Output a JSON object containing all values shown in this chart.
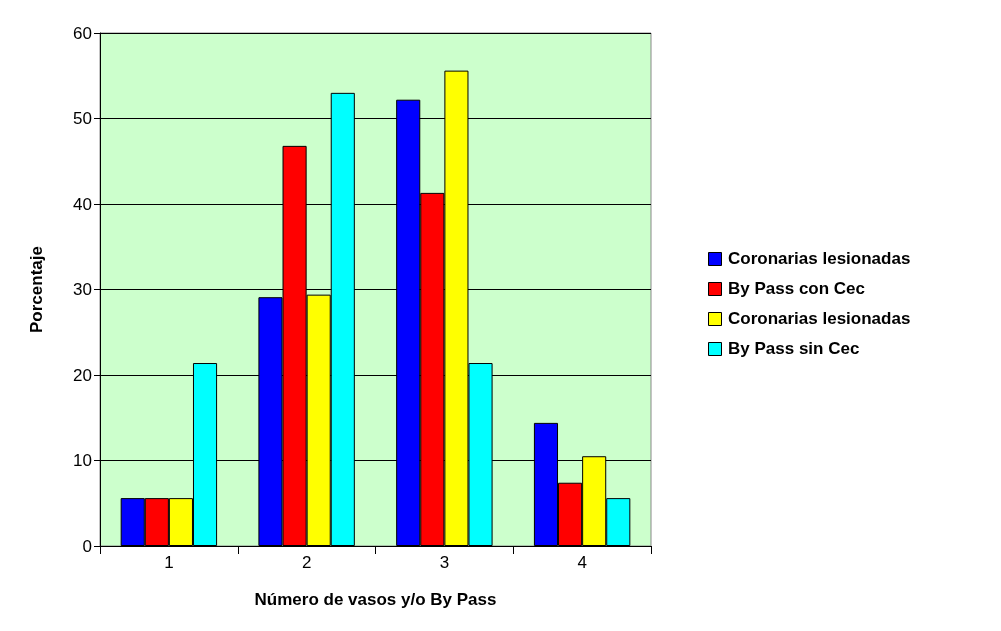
{
  "chart_data": {
    "type": "bar",
    "xlabel": "Número de vasos y/o By Pass",
    "ylabel": "Porcentaje",
    "categories": [
      "1",
      "2",
      "3",
      "4"
    ],
    "series": [
      {
        "name": "Coronarias lesionadas",
        "color": "#0000ff",
        "values": [
          5.6,
          29.1,
          52.2,
          14.4
        ]
      },
      {
        "name": "By Pass con Cec",
        "color": "#ff0000",
        "values": [
          5.6,
          46.8,
          41.3,
          7.4
        ]
      },
      {
        "name": "Coronarias lesionadas",
        "color": "#ffff00",
        "values": [
          5.6,
          29.4,
          55.6,
          10.5
        ]
      },
      {
        "name": "By Pass sin Cec",
        "color": "#00ffff",
        "values": [
          21.4,
          53.0,
          21.4,
          5.6
        ]
      }
    ],
    "ylim": [
      0,
      60
    ],
    "yticks": [
      0,
      10,
      20,
      30,
      40,
      50,
      60
    ],
    "grid": "y",
    "legend": "right"
  }
}
